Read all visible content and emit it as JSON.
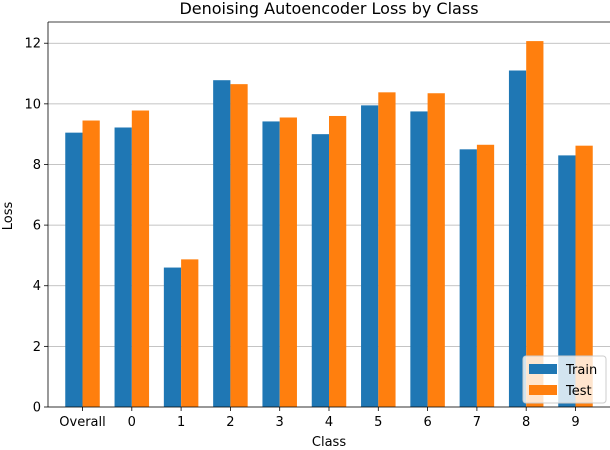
{
  "chart_data": {
    "type": "bar",
    "title": "Denoising Autoencoder Loss by Class",
    "xlabel": "Class",
    "ylabel": "Loss",
    "categories": [
      "Overall",
      "0",
      "1",
      "2",
      "3",
      "4",
      "5",
      "6",
      "7",
      "8",
      "9"
    ],
    "series": [
      {
        "name": "Train",
        "color": "#1f77b4",
        "values": [
          9.05,
          9.22,
          4.6,
          10.78,
          9.42,
          9.0,
          9.95,
          9.75,
          8.5,
          11.1,
          8.3
        ]
      },
      {
        "name": "Test",
        "color": "#ff7f0e",
        "values": [
          9.45,
          9.78,
          4.87,
          10.65,
          9.55,
          9.6,
          10.38,
          10.35,
          8.65,
          12.07,
          8.62
        ]
      }
    ],
    "ylim": [
      0,
      12.7
    ],
    "yticks": [
      0,
      2,
      4,
      6,
      8,
      10,
      12
    ],
    "grid": "horizontal",
    "legend_position": "lower-right"
  }
}
